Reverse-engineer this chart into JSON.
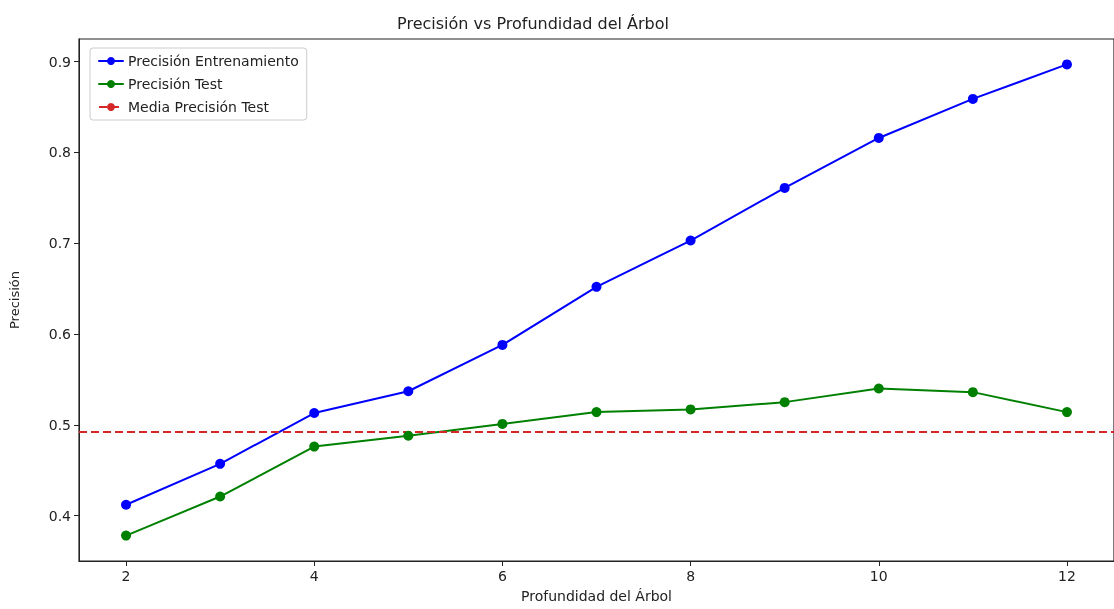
{
  "chart_data": {
    "type": "line",
    "title": "Precisión vs Profundidad del Árbol",
    "xlabel": "Profundidad del Árbol",
    "ylabel": "Precisión",
    "x": [
      2,
      3,
      4,
      5,
      6,
      7,
      8,
      9,
      10,
      11,
      12
    ],
    "series": [
      {
        "name": "Precisión Entrenamiento",
        "color": "#0000ff",
        "values": [
          0.412,
          0.457,
          0.513,
          0.537,
          0.588,
          0.652,
          0.703,
          0.761,
          0.816,
          0.859,
          0.897
        ]
      },
      {
        "name": "Precisión Test",
        "color": "#008000",
        "values": [
          0.378,
          0.421,
          0.476,
          0.488,
          0.501,
          0.514,
          0.517,
          0.525,
          0.54,
          0.536,
          0.514
        ]
      }
    ],
    "ref_lines": [
      {
        "axis": "y",
        "value": 0.492,
        "label": "Media Precisión Test",
        "color": "#d62728",
        "line_style": "dashed"
      }
    ],
    "xlim": [
      1.5,
      12.5
    ],
    "ylim": [
      0.35,
      0.925
    ],
    "xticks": [
      2,
      4,
      6,
      8,
      10,
      12
    ],
    "yticks": [
      0.4,
      0.5,
      0.6,
      0.7,
      0.8,
      0.9
    ],
    "grid": false,
    "legend": "top left",
    "marker": "circle",
    "line_style": "solid"
  }
}
